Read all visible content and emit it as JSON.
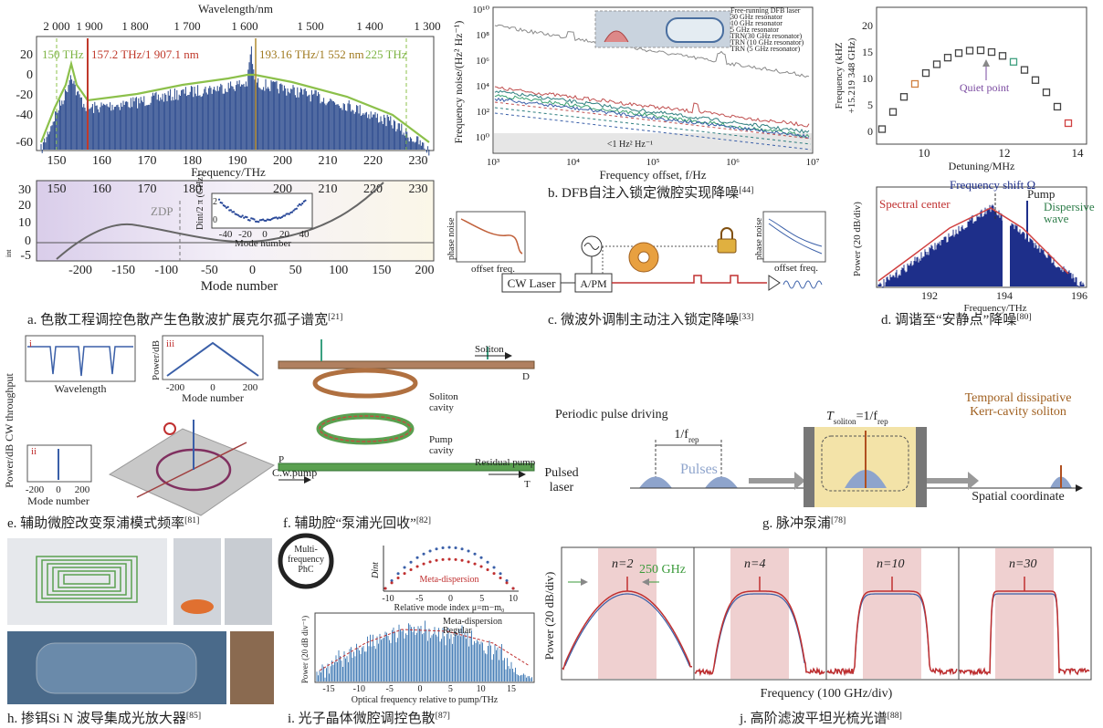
{
  "panel_a": {
    "caption": "a. 色散工程调控色散产生色散波扩展克尔孤子谱宽",
    "ref": "[21]",
    "top_axis_label": "Wavelength/nm",
    "wavelength_ticks": [
      "2 000",
      "1 900",
      "1 800",
      "1 700",
      "1 600",
      "1 500",
      "1 400",
      "1 300"
    ],
    "spectrum_yticks": [
      "20",
      "0",
      "-20",
      "-40",
      "-60"
    ],
    "annotations": [
      "150 THz",
      "157.2 THz/1 907.1 nm",
      "193.16 THz/1 552 nm",
      "225 THz"
    ],
    "frequency_ticks": [
      "150",
      "160",
      "170",
      "180",
      "190",
      "200",
      "210",
      "220",
      "230"
    ],
    "frequency_label": "Frequency/THz",
    "dint_top_ticks": [
      "150",
      "160",
      "170",
      "180",
      "200",
      "210",
      "220",
      "230"
    ],
    "dint_yticks": [
      "30",
      "20",
      "10",
      "0",
      "-5"
    ],
    "dint_ylabel": "int",
    "zdp": "ZDP",
    "inset_ylabel": "Dint/2 π (GHz)",
    "inset_yticks": [
      "2",
      "0"
    ],
    "inset_xticks": [
      "-40",
      "-20",
      "0",
      "20",
      "40"
    ],
    "inset_xlabel": "Mode number",
    "mode_ticks": [
      "-200",
      "-150",
      "-100",
      "-50",
      "0",
      "50",
      "100",
      "150",
      "200"
    ],
    "mode_label": "Mode number"
  },
  "panel_b": {
    "caption": "b. DFB自注入锁定微腔实现降噪",
    "ref": "[44]",
    "ylabel": "Frequency noise/(Hz² Hz⁻¹)",
    "yticks": [
      "10¹⁰",
      "10⁸",
      "10⁶",
      "10⁴",
      "10²",
      "10⁰"
    ],
    "xticks": [
      "10³",
      "10⁴",
      "10⁵",
      "10⁶",
      "10⁷"
    ],
    "xlabel": "Frequency offset, f/Hz",
    "legend": [
      "Free-running DFB laser",
      "30 GHz resonator",
      "10 GHz resonator",
      "5 GHz resonator",
      "TRN(30 GHz resonator)",
      "TRN (10 GHz resonator)",
      "TRN (5 GHz resonator)"
    ],
    "floor_label": "<1 Hz² Hz⁻¹"
  },
  "panel_c": {
    "caption": "c. 微波外调制主动注入锁定降噪",
    "ref": "[33]",
    "left_ylabel": "phase noise",
    "left_xlabel": "offset freq.",
    "laser": "CW Laser",
    "modulator": "A/PM",
    "right_ylabel": "phase noise",
    "right_xlabel": "offset freq."
  },
  "panel_d": {
    "caption": "d. 调谐至“安静点”降噪",
    "ref": "[80]",
    "top_ylabel": [
      "Frequency (kHZ",
      "+15.219 348 GHz)"
    ],
    "top_yticks": [
      "20",
      "15",
      "10",
      "5",
      "0"
    ],
    "top_xticks": [
      "10",
      "12",
      "14"
    ],
    "top_xlabel": "Detuning/MHz",
    "quiet_point": "Quiet point",
    "shift_label": "Frequency shift Ω",
    "pump_label": "Pump",
    "center_label": "Spectral center",
    "dispersive_label": [
      "Dispersive",
      "wave"
    ],
    "bottom_ylabel": "Power (20 dB/div)",
    "bottom_xticks": [
      "192",
      "194",
      "196"
    ],
    "bottom_xlabel": "Frequency/THz"
  },
  "panel_e": {
    "caption": "e. 辅助微腔改变泵浦模式频率",
    "ref": "[81]",
    "ylabel": "Power/dB CW throughput",
    "inset_i": "i",
    "inset_i_xlabel": "Wavelength",
    "inset_iii": "iii",
    "inset_iii_ylabel": "Power/dB",
    "inset_iii_xticks": [
      "-200",
      "0",
      "200"
    ],
    "inset_iii_xlabel": "Mode number",
    "inset_ii": "ii",
    "inset_ii_xticks": [
      "-200",
      "0",
      "200"
    ],
    "inset_ii_xlabel": "Mode number"
  },
  "panel_f": {
    "caption": "f. 辅助腔“泵浦光回收”",
    "ref": "[82]",
    "soliton": "Soliton",
    "port_d": "D",
    "soliton_cavity": [
      "Soliton",
      "cavity"
    ],
    "pump_cavity": [
      "Pump",
      "cavity"
    ],
    "port_p": "P",
    "cw_pump": "C.w.pump",
    "residual_pump": "Residual pump",
    "port_t": "T"
  },
  "panel_g": {
    "caption": "g. 脉冲泵浦",
    "ref": "[78]",
    "driving": "Periodic pulse driving",
    "period": "1/f",
    "period_sub": "rep",
    "pulses": "Pulses",
    "source": [
      "Pulsed",
      "laser"
    ],
    "soliton_t": "T",
    "soliton_t_sub": "soliton",
    "soliton_eq": "=1/f",
    "soliton_eq_sub": "rep",
    "soliton_label": [
      "Temporal dissipative",
      "Kerr-cavity soliton"
    ],
    "axis_label": "Spatial coordinate"
  },
  "panel_h": {
    "caption": "h. 掺铒Si N 波导集成光放大器",
    "ref": "[85]"
  },
  "panel_i": {
    "caption": "i. 光子晶体微腔调控色散",
    "ref": "[87]",
    "phc_label": [
      "Multi-",
      "frequency",
      "PhC"
    ],
    "dint_label": "Dint",
    "meta_label": "Meta-dispersion",
    "mode_ticks": [
      "-10",
      "-5",
      "0",
      "5",
      "10"
    ],
    "mode_label": "Relative mode index μ=m−m₀",
    "spectrum_ylabel": "Power (20 dB div⁻¹)",
    "legend": [
      "Meta-dispersion",
      "Regular"
    ],
    "xticks": [
      "-15",
      "-10",
      "-5",
      "0",
      "5",
      "10",
      "15"
    ],
    "xlabel": "Optical frequency relative to pump/THz"
  },
  "panel_j": {
    "caption": "j. 高阶滤波平坦光梳光谱",
    "ref": "[88]",
    "ylabel": "Power (20 dB/div)",
    "orders": [
      "n=2",
      "n=4",
      "n=10",
      "n=30"
    ],
    "spacing": "250 GHz",
    "xlabel": "Frequency (100 GHz/div)"
  }
}
